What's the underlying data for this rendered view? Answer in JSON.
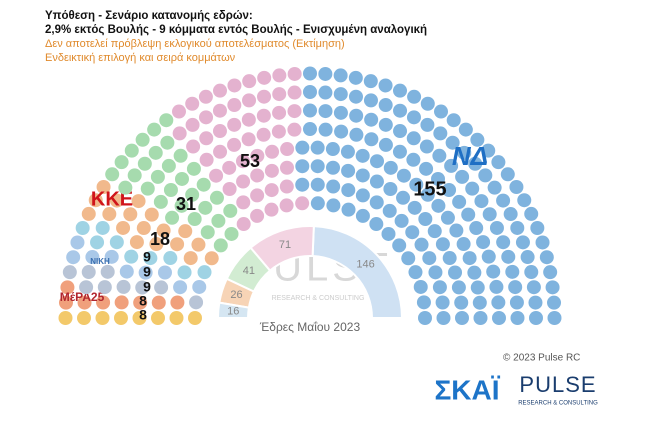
{
  "header": {
    "title": "Υπόθεση - Σενάριο κατανομής εδρών:",
    "subtitle": "2,9% εκτός Βουλής - 9 κόμματα εντός Βουλής - Ενισχυμένη αναλογική",
    "notes": [
      "Δεν αποτελεί πρόβλεψη εκλογικού αποτελέσματος   (Εκτίμηση)",
      "Ενδεικτική επιλογή και σειρά κομμάτων"
    ]
  },
  "chart_data": [
    {
      "type": "parliament",
      "series": [
        {
          "color": "#f3c96a",
          "values": [
            8
          ]
        },
        {
          "color": "#f0a07c",
          "values": [
            8
          ],
          "logo": "ΜέΡΑ25"
        },
        {
          "color": "#b8c4d6",
          "values": [
            9
          ]
        },
        {
          "color": "#a9c8e8",
          "values": [
            9
          ],
          "logo": "ΝΙΚΗ"
        },
        {
          "color": "#9fd3e4",
          "values": [
            9
          ]
        },
        {
          "color": "#f1b98c",
          "values": [
            18
          ],
          "logo": "ΚΚΕ"
        },
        {
          "color": "#a6dbae",
          "values": [
            31
          ]
        },
        {
          "color": "#e4b2cf",
          "values": [
            53
          ]
        },
        {
          "color": "#7fb3de",
          "values": [
            155
          ],
          "logo": "ΝΔ"
        }
      ]
    },
    {
      "type": "semicircle",
      "title": "Έδρες Μαΐου 2023",
      "series": [
        {
          "color": "#cfe1f3",
          "values": [
            146
          ]
        },
        {
          "color": "#f3d4e2",
          "values": [
            71
          ]
        },
        {
          "color": "#d2ecd2",
          "values": [
            41
          ]
        },
        {
          "color": "#f7d4b6",
          "values": [
            26
          ]
        },
        {
          "color": "#d5e6f2",
          "values": [
            16
          ]
        }
      ]
    }
  ],
  "watermark": {
    "title": "PULSE",
    "subtitle": "RESEARCH & CONSULTING"
  },
  "footer": {
    "copyright": "© 2023 Pulse RC",
    "broadcaster": "ΣΚΑΪ",
    "brand": "PULSE",
    "brand_tagline": "RESEARCH & CONSULTING"
  }
}
